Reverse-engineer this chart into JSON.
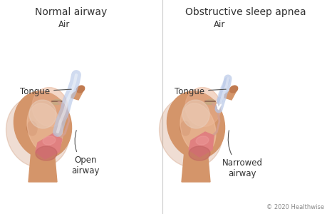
{
  "background_color": "#ffffff",
  "title_left": "Normal airway",
  "title_right": "Obstructive sleep apnea",
  "label_air": "Air",
  "label_tongue_left": "Tongue",
  "label_tongue_right": "Tongue",
  "label_open": "Open\nairway",
  "label_narrowed": "Narrowed\nairway",
  "copyright": "© 2020 Healthwise",
  "skin_color": "#d4956a",
  "skin_shadow": "#c07a50",
  "skin_light": "#e8b090",
  "tongue_color": "#e08080",
  "airway_color": "#f0c0a0",
  "air_color": "#b8c8e8",
  "air_alpha": 0.75,
  "throat_color": "#c06060",
  "line_color": "#555555",
  "title_fontsize": 10,
  "label_fontsize": 8.5,
  "small_fontsize": 6
}
